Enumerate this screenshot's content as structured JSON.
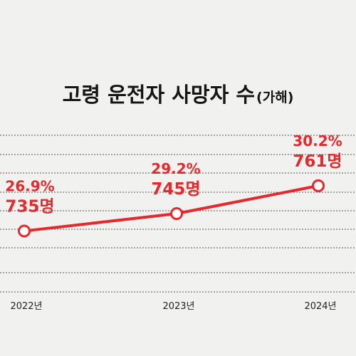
{
  "title": {
    "main": "고령 운전자 사망자 수",
    "sub": "(가해)"
  },
  "colors": {
    "line": "#e5292c",
    "label": "#e5292c",
    "background": "#f1f1f0",
    "grid": "#555555"
  },
  "chart_data": {
    "type": "line",
    "categories": [
      "2022년",
      "2023년",
      "2024년"
    ],
    "series": [
      {
        "values": [
          735,
          745,
          761
        ],
        "value_labels": [
          "735명",
          "745명",
          "761명"
        ]
      }
    ],
    "percent_labels": [
      "26.9%",
      "29.2%",
      "30.2%"
    ],
    "ylim": [
      700,
      790
    ],
    "grid": true,
    "marker": "hollow-circle"
  }
}
